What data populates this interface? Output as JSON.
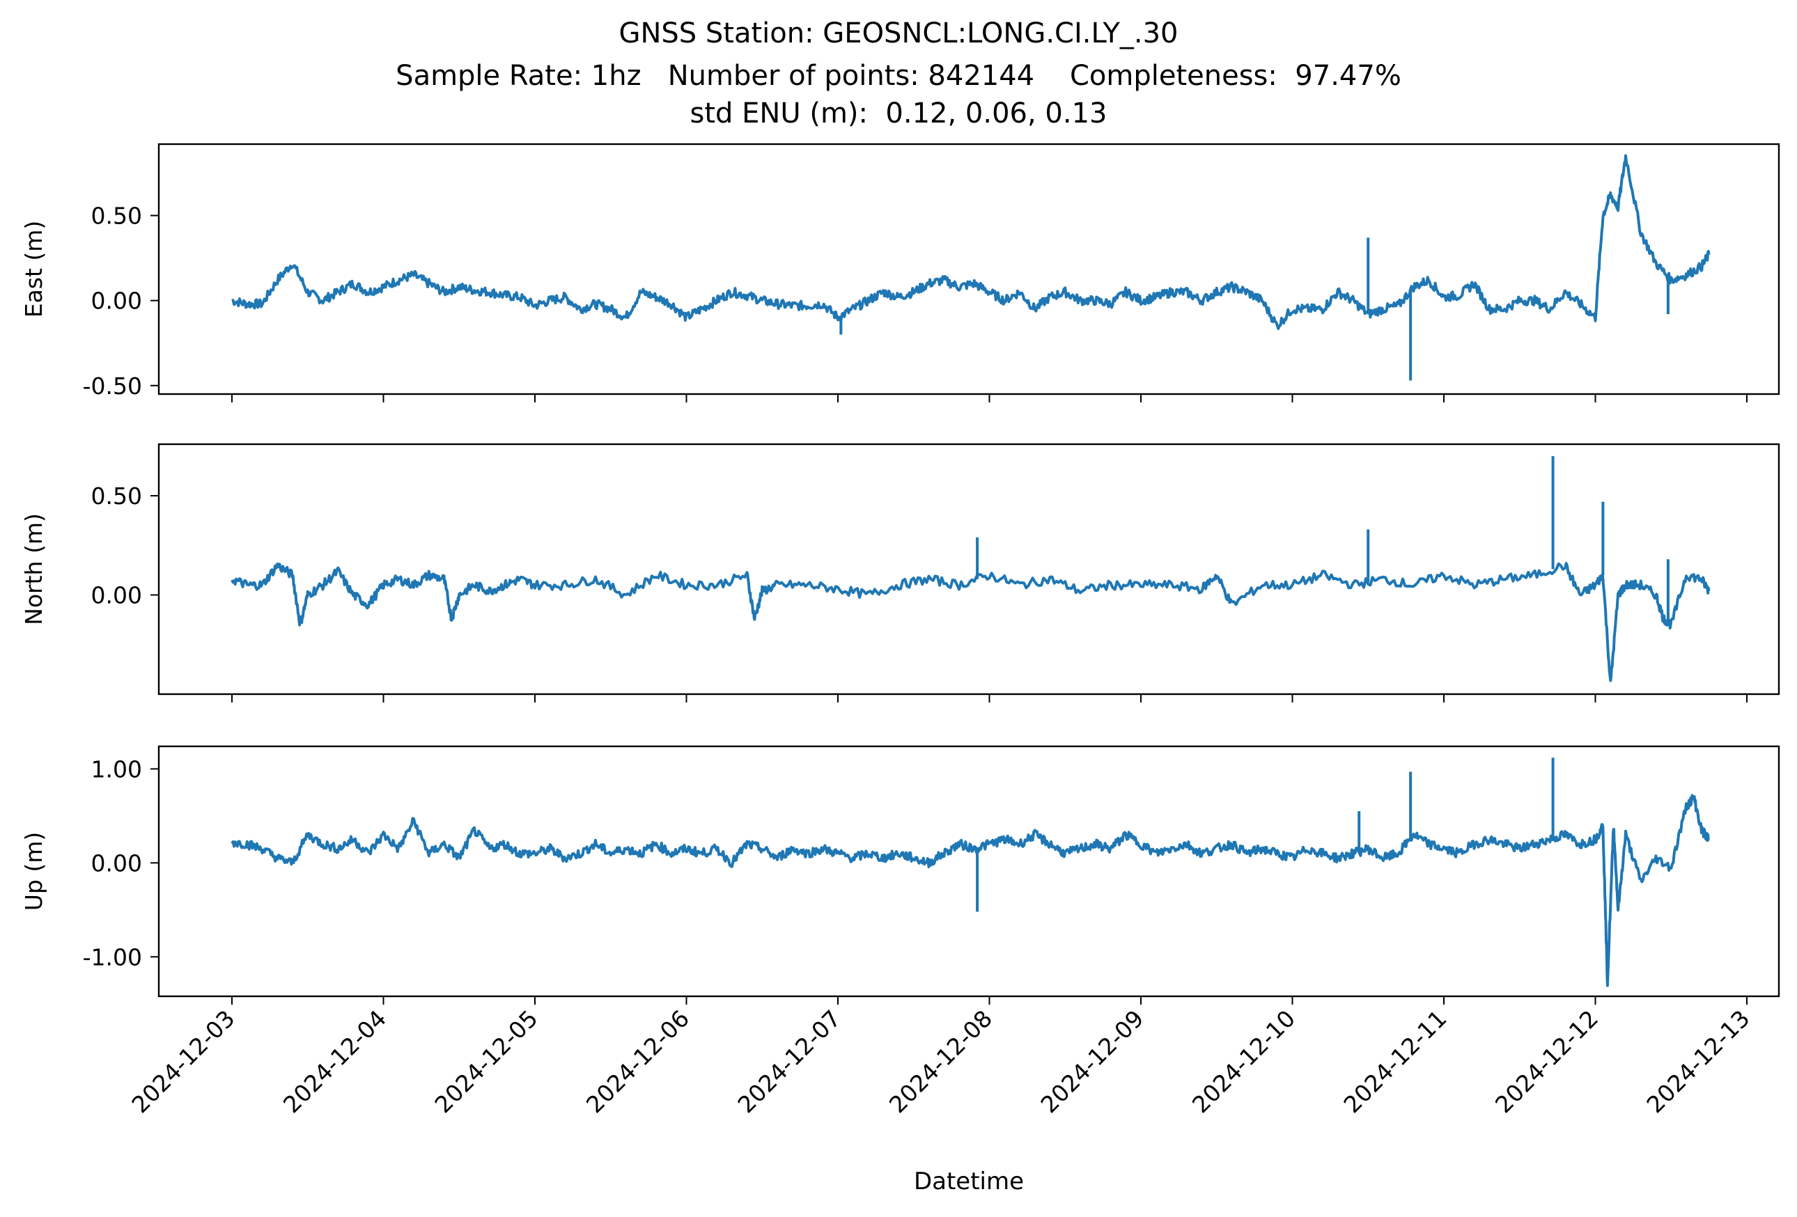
{
  "figure": {
    "title_lines": [
      "GNSS Station: GEOSNCL:LONG.CI.LY_.30",
      "Sample Rate: 1hz   Number of points: 842144    Completeness:  97.47%",
      "std ENU (m):  0.12, 0.06, 0.13"
    ]
  },
  "chart_data": {
    "type": "line",
    "title": "GNSS Station: GEOSNCL:LONG.CI.LY_.30",
    "subtitle": "Sample Rate: 1hz   Number of points: 842144    Completeness:  97.47%",
    "std_enu_label": "std ENU (m):  0.12, 0.06, 0.13",
    "xlabel": "Datetime",
    "x_ticks": [
      "2024-12-03",
      "2024-12-04",
      "2024-12-05",
      "2024-12-06",
      "2024-12-07",
      "2024-12-08",
      "2024-12-09",
      "2024-12-10",
      "2024-12-11",
      "2024-12-12",
      "2024-12-13"
    ],
    "x_range_days": [
      "2024-12-02T12:00",
      "2024-12-13T05:00"
    ],
    "line_color": "#1f77b4",
    "grid": false,
    "panels": [
      {
        "name": "east",
        "ylabel": "East (m)",
        "ylim": [
          -0.55,
          0.92
        ],
        "y_ticks": [
          0.5,
          0.0,
          -0.5
        ],
        "y_tick_labels": [
          "0.50",
          "0.00",
          "-0.50"
        ],
        "series": [
          {
            "x_days_since_2024-12-03": [
              0,
              0.1,
              0.2,
              0.3,
              0.4,
              0.5,
              0.6,
              0.7,
              0.8,
              0.9,
              1.0,
              1.1,
              1.2,
              1.3,
              1.4,
              1.5,
              1.6,
              1.7,
              1.8,
              1.9,
              2.0,
              2.1,
              2.2,
              2.3,
              2.4,
              2.5,
              2.6,
              2.7,
              2.8,
              2.9,
              3.0,
              3.1,
              3.2,
              3.3,
              3.4,
              3.5,
              3.6,
              3.7,
              3.8,
              3.9,
              4.0,
              4.1,
              4.2,
              4.3,
              4.4,
              4.5,
              4.6,
              4.7,
              4.8,
              4.9,
              5.0,
              5.1,
              5.2,
              5.3,
              5.4,
              5.5,
              5.6,
              5.7,
              5.8,
              5.9,
              6.0,
              6.1,
              6.2,
              6.3,
              6.4,
              6.5,
              6.6,
              6.7,
              6.8,
              6.9,
              7.0,
              7.1,
              7.2,
              7.3,
              7.4,
              7.5,
              7.6,
              7.7,
              7.8,
              7.9,
              8.0,
              8.1,
              8.2,
              8.3,
              8.4,
              8.5,
              8.6,
              8.7,
              8.8,
              8.9,
              9.0,
              9.05,
              9.1,
              9.15,
              9.2,
              9.3,
              9.4,
              9.5,
              9.6,
              9.7,
              9.75
            ],
            "y": [
              0.0,
              -0.02,
              -0.02,
              0.12,
              0.22,
              0.05,
              0.0,
              0.05,
              0.1,
              0.05,
              0.08,
              0.12,
              0.15,
              0.1,
              0.05,
              0.08,
              0.06,
              0.05,
              0.03,
              0.02,
              -0.03,
              0.0,
              0.02,
              -0.05,
              -0.02,
              -0.05,
              -0.1,
              0.05,
              0.02,
              -0.02,
              -0.1,
              -0.05,
              0.0,
              0.05,
              0.03,
              0.0,
              -0.02,
              -0.03,
              -0.03,
              -0.02,
              -0.1,
              -0.05,
              0.0,
              0.05,
              0.02,
              0.05,
              0.1,
              0.12,
              0.08,
              0.1,
              0.05,
              0.0,
              0.05,
              -0.05,
              0.02,
              0.05,
              0.0,
              0.0,
              -0.02,
              0.05,
              0.0,
              0.02,
              0.05,
              0.05,
              0.0,
              0.05,
              0.08,
              0.05,
              0.0,
              -0.15,
              -0.05,
              -0.05,
              -0.05,
              0.05,
              0.0,
              -0.08,
              -0.05,
              -0.03,
              0.08,
              0.12,
              0.02,
              0.03,
              0.1,
              -0.05,
              -0.05,
              0.0,
              0.0,
              -0.05,
              0.05,
              -0.02,
              -0.1,
              0.5,
              0.62,
              0.55,
              0.85,
              0.4,
              0.22,
              0.12,
              0.15,
              0.2,
              0.27
            ]
          }
        ],
        "spikes": [
          {
            "x_days": 7.5,
            "y": 0.37
          },
          {
            "x_days": 7.78,
            "y": -0.47
          },
          {
            "x_days": 4.02,
            "y": -0.2
          },
          {
            "x_days": 9.48,
            "y": -0.08
          }
        ]
      },
      {
        "name": "north",
        "ylabel": "North (m)",
        "ylim": [
          -0.5,
          0.76
        ],
        "y_ticks": [
          0.5,
          0.0
        ],
        "y_tick_labels": [
          "0.50",
          "0.00"
        ],
        "series": [
          {
            "x_days_since_2024-12-03": [
              0,
              0.1,
              0.2,
              0.3,
              0.4,
              0.45,
              0.5,
              0.6,
              0.7,
              0.8,
              0.9,
              1.0,
              1.1,
              1.2,
              1.3,
              1.4,
              1.45,
              1.5,
              1.6,
              1.7,
              1.8,
              1.9,
              2.0,
              2.2,
              2.4,
              2.6,
              2.8,
              3.0,
              3.2,
              3.4,
              3.45,
              3.5,
              3.6,
              3.8,
              4.0,
              4.2,
              4.4,
              4.6,
              4.8,
              5.0,
              5.2,
              5.4,
              5.6,
              5.8,
              6.0,
              6.2,
              6.4,
              6.5,
              6.6,
              6.8,
              7.0,
              7.2,
              7.4,
              7.6,
              7.8,
              8.0,
              8.2,
              8.4,
              8.6,
              8.8,
              8.9,
              9.0,
              9.05,
              9.1,
              9.15,
              9.2,
              9.3,
              9.4,
              9.45,
              9.5,
              9.6,
              9.7,
              9.75
            ],
            "y": [
              0.08,
              0.05,
              0.05,
              0.15,
              0.1,
              -0.15,
              0.0,
              0.05,
              0.12,
              0.0,
              -0.05,
              0.05,
              0.08,
              0.05,
              0.1,
              0.08,
              -0.12,
              0.0,
              0.05,
              0.02,
              0.05,
              0.08,
              0.05,
              0.05,
              0.08,
              0.0,
              0.1,
              0.05,
              0.05,
              0.1,
              -0.12,
              0.02,
              0.05,
              0.05,
              0.03,
              0.0,
              0.05,
              0.08,
              0.05,
              0.1,
              0.05,
              0.08,
              0.02,
              0.05,
              0.05,
              0.05,
              0.03,
              0.1,
              -0.05,
              0.05,
              0.05,
              0.1,
              0.05,
              0.08,
              0.05,
              0.1,
              0.05,
              0.08,
              0.1,
              0.15,
              0.0,
              0.05,
              0.1,
              -0.45,
              0.0,
              0.05,
              0.05,
              0.0,
              -0.12,
              -0.15,
              0.1,
              0.08,
              0.02
            ]
          }
        ],
        "spikes": [
          {
            "x_days": 4.92,
            "y": 0.29
          },
          {
            "x_days": 7.5,
            "y": 0.33
          },
          {
            "x_days": 8.72,
            "y": 0.7
          },
          {
            "x_days": 9.05,
            "y": 0.47
          },
          {
            "x_days": 9.48,
            "y": 0.18
          }
        ]
      },
      {
        "name": "up",
        "ylabel": "Up (m)",
        "ylim": [
          -1.42,
          1.24
        ],
        "y_ticks": [
          1.0,
          0.0,
          -1.0
        ],
        "y_tick_labels": [
          "1.00",
          "0.00",
          "-1.00"
        ],
        "series": [
          {
            "x_days_since_2024-12-03": [
              0,
              0.1,
              0.2,
              0.3,
              0.4,
              0.5,
              0.6,
              0.7,
              0.8,
              0.9,
              1.0,
              1.1,
              1.2,
              1.3,
              1.4,
              1.5,
              1.6,
              1.7,
              1.8,
              1.9,
              2.0,
              2.1,
              2.2,
              2.3,
              2.4,
              2.5,
              2.6,
              2.7,
              2.8,
              2.9,
              3.0,
              3.1,
              3.2,
              3.3,
              3.4,
              3.5,
              3.6,
              3.7,
              3.8,
              3.9,
              4.0,
              4.1,
              4.2,
              4.3,
              4.4,
              4.5,
              4.6,
              4.7,
              4.8,
              4.9,
              5.0,
              5.1,
              5.2,
              5.3,
              5.4,
              5.5,
              5.6,
              5.7,
              5.8,
              5.9,
              6.0,
              6.1,
              6.2,
              6.3,
              6.4,
              6.5,
              6.6,
              6.7,
              6.8,
              6.9,
              7.0,
              7.1,
              7.2,
              7.3,
              7.4,
              7.5,
              7.6,
              7.7,
              7.8,
              7.9,
              8.0,
              8.1,
              8.2,
              8.3,
              8.4,
              8.5,
              8.6,
              8.7,
              8.8,
              8.9,
              9.0,
              9.05,
              9.08,
              9.12,
              9.15,
              9.2,
              9.3,
              9.4,
              9.5,
              9.6,
              9.65,
              9.7,
              9.75
            ],
            "y": [
              0.22,
              0.2,
              0.15,
              0.05,
              0.0,
              0.3,
              0.2,
              0.15,
              0.25,
              0.1,
              0.3,
              0.15,
              0.45,
              0.1,
              0.2,
              0.05,
              0.35,
              0.15,
              0.2,
              0.1,
              0.1,
              0.15,
              0.05,
              0.1,
              0.2,
              0.1,
              0.15,
              0.1,
              0.2,
              0.1,
              0.15,
              0.1,
              0.15,
              0.0,
              0.2,
              0.15,
              0.05,
              0.15,
              0.1,
              0.15,
              0.1,
              0.05,
              0.1,
              0.05,
              0.1,
              0.05,
              0.0,
              0.1,
              0.2,
              0.15,
              0.2,
              0.25,
              0.2,
              0.3,
              0.2,
              0.1,
              0.15,
              0.2,
              0.15,
              0.3,
              0.2,
              0.1,
              0.15,
              0.2,
              0.1,
              0.15,
              0.2,
              0.1,
              0.15,
              0.1,
              0.05,
              0.15,
              0.1,
              0.05,
              0.1,
              0.15,
              0.05,
              0.1,
              0.3,
              0.2,
              0.15,
              0.1,
              0.2,
              0.25,
              0.2,
              0.15,
              0.2,
              0.25,
              0.3,
              0.2,
              0.25,
              0.4,
              -1.28,
              0.4,
              -0.5,
              0.3,
              -0.2,
              0.05,
              -0.05,
              0.6,
              0.7,
              0.35,
              0.25
            ]
          }
        ],
        "spikes": [
          {
            "x_days": 4.92,
            "y": -0.52
          },
          {
            "x_days": 7.44,
            "y": 0.55
          },
          {
            "x_days": 7.78,
            "y": 0.97
          },
          {
            "x_days": 8.72,
            "y": 1.12
          }
        ]
      }
    ]
  }
}
